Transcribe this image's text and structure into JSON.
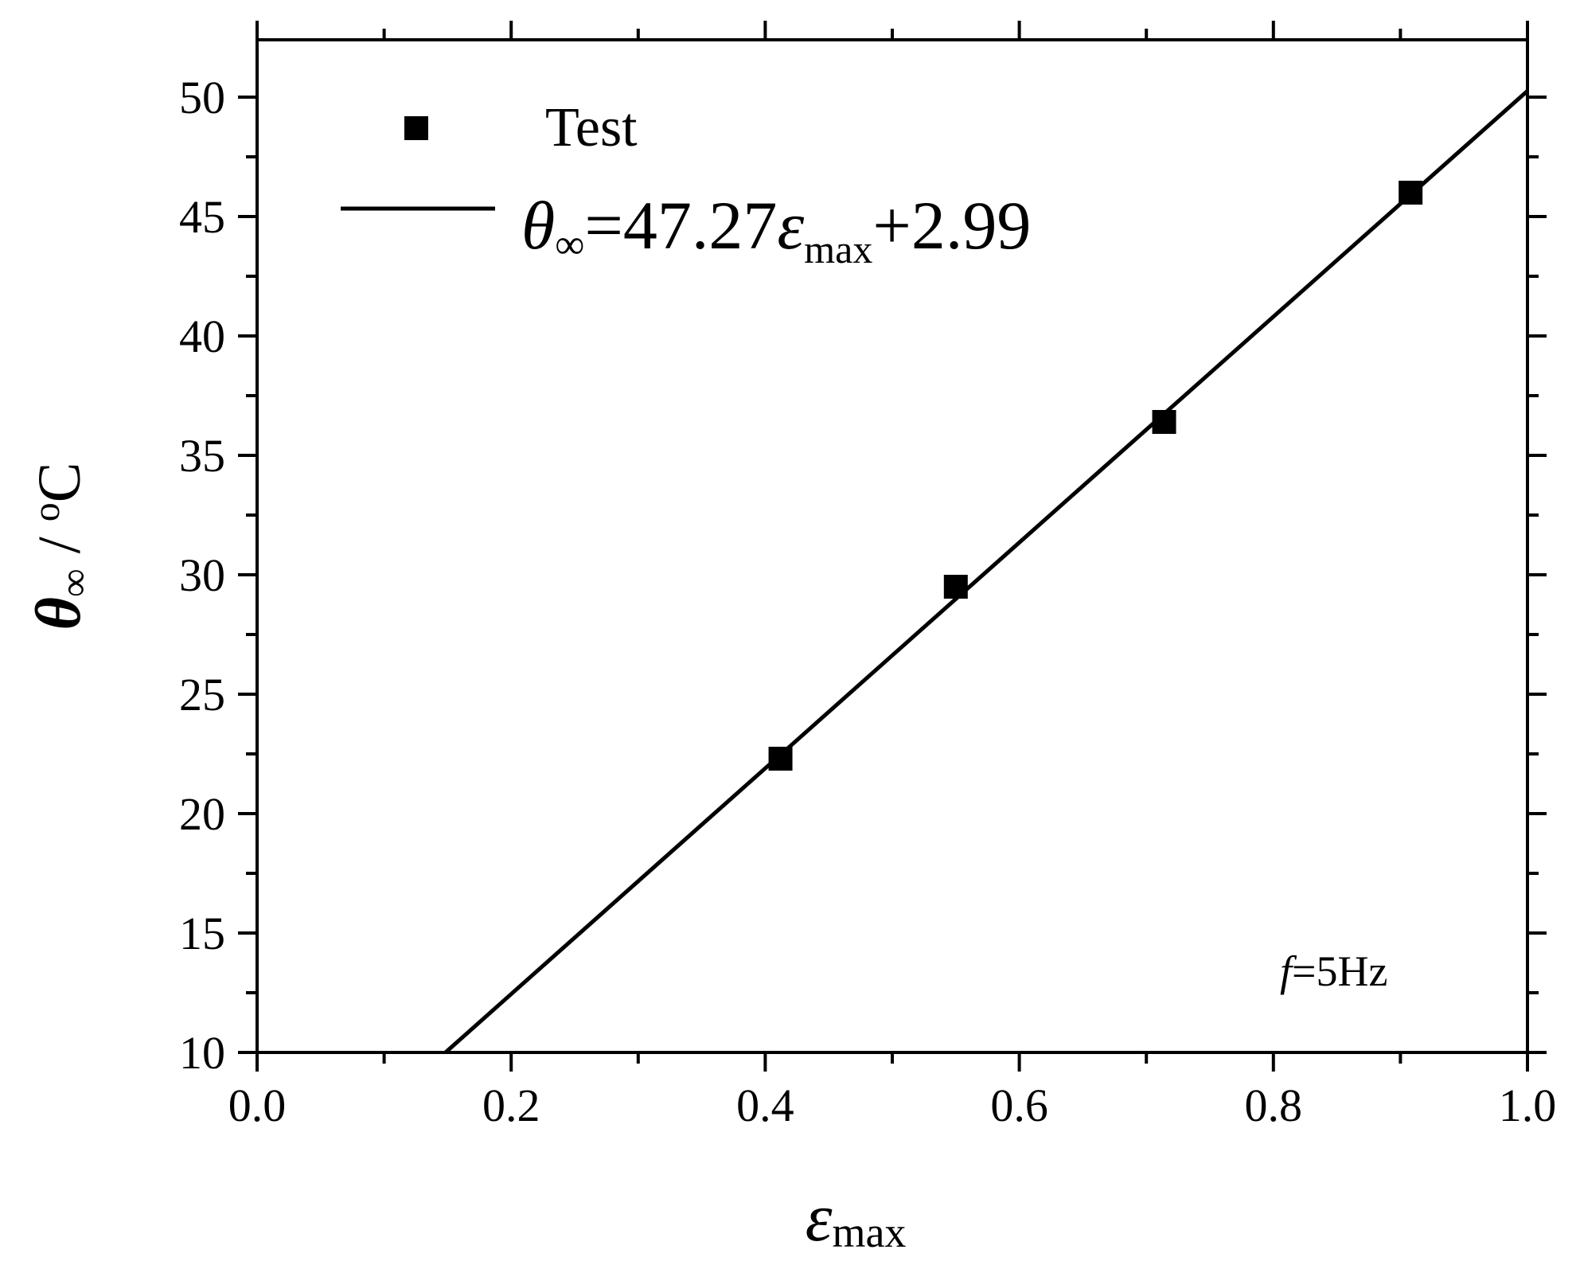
{
  "chart_data": {
    "type": "scatter",
    "x_ticks": [
      "0.0",
      "0.2",
      "0.4",
      "0.6",
      "0.8",
      "1.0"
    ],
    "y_ticks": [
      "10",
      "15",
      "20",
      "25",
      "30",
      "35",
      "40",
      "45",
      "50"
    ],
    "xlim": [
      0,
      1
    ],
    "ylim": [
      10,
      52.4
    ],
    "xlabel": {
      "main": "ε",
      "sub": "max"
    },
    "ylabel": {
      "main": "θ",
      "sub": "∞",
      "unit": " / ",
      "deg": "o",
      "unit_c": "C"
    },
    "series": [
      {
        "name": "Test",
        "kind": "scatter",
        "marker": "square",
        "color": "#000000",
        "x": [
          0.412,
          0.55,
          0.714,
          0.908
        ],
        "y": [
          22.3,
          29.5,
          36.4,
          46.0
        ]
      },
      {
        "name": "fit",
        "kind": "line",
        "color": "#000000",
        "slope": 47.27,
        "intercept": 2.99,
        "x_range": [
          0.1483,
          1.0
        ]
      }
    ],
    "legend": {
      "placement": "top-left",
      "test_label": "Test",
      "fit_label": {
        "theta": "θ",
        "inf": "∞",
        "eq": "=47.27",
        "eps": "ε",
        "max": "max",
        "tail": "+2.99"
      }
    },
    "annotation": {
      "f": "f",
      "rest": "=5Hz",
      "placement": "bottom-right"
    },
    "grid": false
  }
}
